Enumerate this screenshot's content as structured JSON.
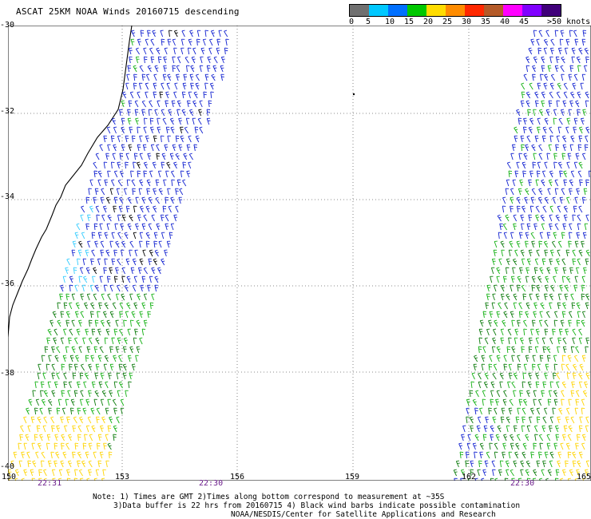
{
  "title": "ASCAT 25KM NOAA Winds 20160715 descending",
  "legend": {
    "labels": [
      "0",
      "5",
      "10",
      "15",
      "20",
      "25",
      "30",
      "35",
      "40",
      "45",
      ">50 knots"
    ],
    "colors": [
      "#707070",
      "#00c8ff",
      "#0070ff",
      "#00c800",
      "#ffdc00",
      "#ff8c00",
      "#ff2800",
      "#b45a28",
      "#ff00ff",
      "#8000ff",
      "#40007a"
    ]
  },
  "map": {
    "lat_labels": [
      "-30",
      "-32",
      "-34",
      "-36",
      "-38",
      "-40"
    ],
    "lon_labels": [
      "150",
      "153",
      "156",
      "159",
      "162",
      "165"
    ],
    "times": [
      "22:31",
      "22:30",
      "22:30"
    ],
    "barb_colors": {
      "light_blue": "#33ccff",
      "blue": "#1020d0",
      "green": "#10b010",
      "dark_green": "#0a7a0a",
      "yellow": "#ffd400",
      "black": "#000000"
    }
  },
  "notes": {
    "line1": "Note: 1) Times are GMT 2)Times along bottom correspond to measurement at ~35S",
    "line2": "3)Data buffer is 22 hrs from 20160715 4) Black wind barbs indicate possible contamination",
    "line3": "NOAA/NESDIS/Center for Satellite Applications and Research"
  }
}
